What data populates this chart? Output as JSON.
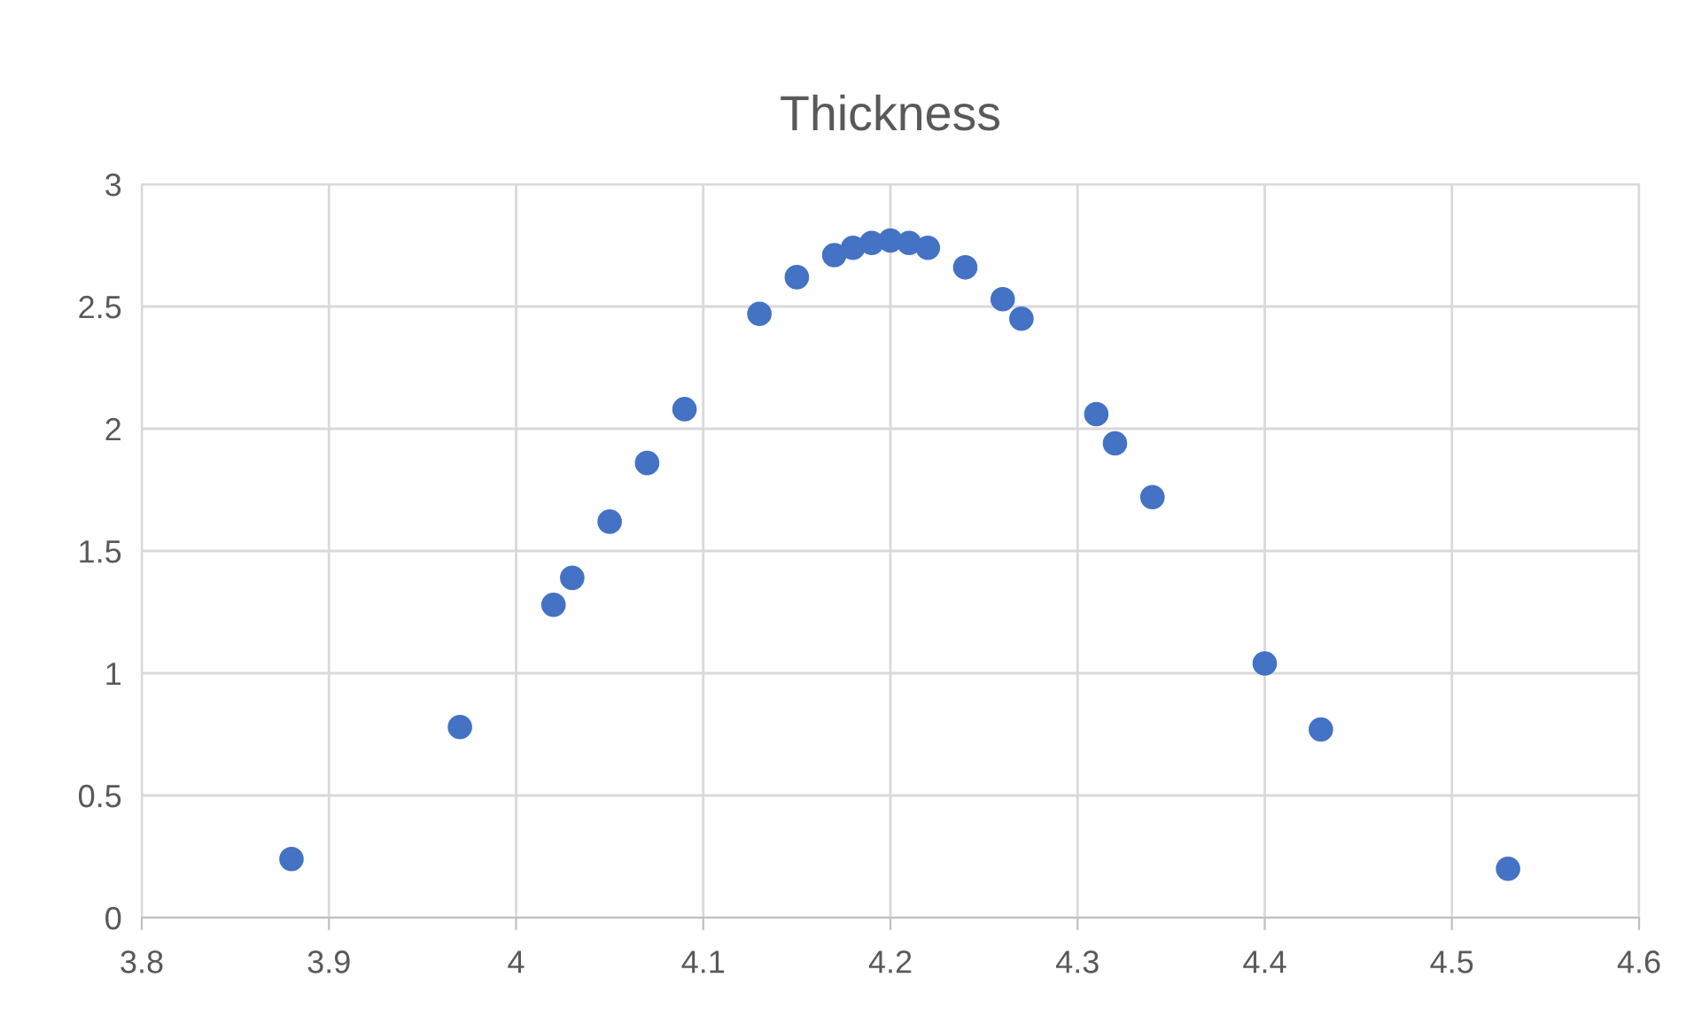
{
  "chart_data": {
    "type": "scatter",
    "title": "Thickness",
    "x": [
      3.88,
      3.97,
      4.02,
      4.03,
      4.05,
      4.07,
      4.09,
      4.13,
      4.15,
      4.17,
      4.18,
      4.19,
      4.2,
      4.21,
      4.22,
      4.24,
      4.26,
      4.27,
      4.31,
      4.32,
      4.34,
      4.4,
      4.43,
      4.53
    ],
    "series": [
      {
        "color": "#4472c4",
        "values": [
          0.24,
          0.78,
          1.28,
          1.39,
          1.62,
          1.86,
          2.08,
          2.47,
          2.62,
          2.71,
          2.74,
          2.76,
          2.77,
          2.76,
          2.74,
          2.66,
          2.53,
          2.45,
          2.06,
          1.94,
          1.72,
          1.04,
          0.77,
          0.2
        ]
      }
    ],
    "xlim": [
      3.8,
      4.6
    ],
    "xticks": [
      3.8,
      3.9,
      4,
      4.1,
      4.2,
      4.3,
      4.4,
      4.5,
      4.6
    ],
    "ylim": [
      0,
      3
    ],
    "yticks": [
      0,
      0.5,
      1,
      1.5,
      2,
      2.5,
      3
    ],
    "grid": true,
    "marker": "circle",
    "legend": false
  }
}
